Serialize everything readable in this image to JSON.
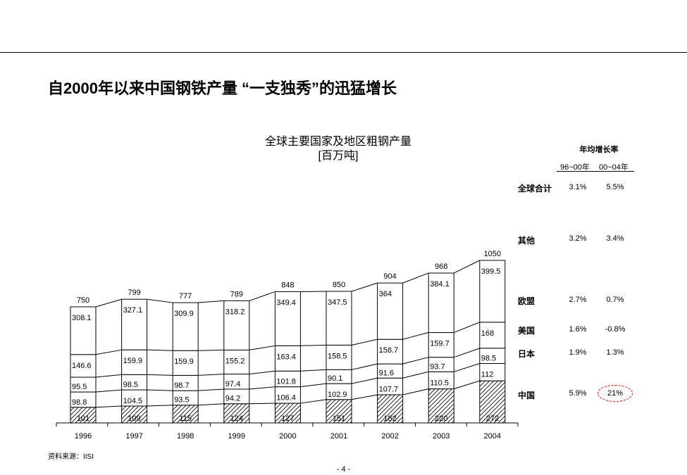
{
  "page": {
    "title": "自2000年以来中国钢铁产量 “一支独秀”的迅猛增长",
    "source": "资料来源：IISI",
    "page_number": "- 4 -"
  },
  "growth_table": {
    "header": "年均增长率",
    "col1": "96~00年",
    "col2": "00~04年",
    "rows": [
      {
        "label": "全球合计",
        "g1": "3.1%",
        "g2": "5.5%"
      },
      {
        "label": "其他",
        "g1": "3.2%",
        "g2": "3.4%"
      },
      {
        "label": "欧盟",
        "g1": "2.7%",
        "g2": "0.7%"
      },
      {
        "label": "美国",
        "g1": "1.6%",
        "g2": "-0.8%"
      },
      {
        "label": "日本",
        "g1": "1.9%",
        "g2": "1.3%"
      },
      {
        "label": "中国",
        "g1": "5.9%",
        "g2": "21%"
      }
    ],
    "highlight_color": "#ff0000"
  },
  "chart_data": {
    "type": "bar",
    "stacked": true,
    "title": "全球主要国家及地区粗钢产量",
    "unit": "[百万吨]",
    "categories": [
      "1996",
      "1997",
      "1998",
      "1999",
      "2000",
      "2001",
      "2002",
      "2003",
      "2004"
    ],
    "series": [
      {
        "name": "中国",
        "values": [
          "101",
          "109",
          "115",
          "124",
          "127",
          "151",
          "182",
          "220",
          "272"
        ],
        "pattern": "hatched"
      },
      {
        "name": "日本",
        "values": [
          "98.8",
          "104.5",
          "93.5",
          "94.2",
          "106.4",
          "102.9",
          "107.7",
          "110.5",
          "112"
        ]
      },
      {
        "name": "美国",
        "values": [
          "95.5",
          "98.5",
          "98.7",
          "97.4",
          "101.8",
          "90.1",
          "91.6",
          "93.7",
          "98.5"
        ]
      },
      {
        "name": "欧盟",
        "values": [
          "146.6",
          "159.9",
          "159.9",
          "155.2",
          "163.4",
          "158.5",
          "158.7",
          "159.7",
          "168"
        ]
      },
      {
        "name": "其他",
        "values": [
          "308.1",
          "327.1",
          "309.9",
          "318.2",
          "349.4",
          "347.5",
          "364",
          "384.1",
          "399.5"
        ]
      }
    ],
    "totals": [
      "750",
      "799",
      "777",
      "789",
      "848",
      "850",
      "904",
      "968",
      "1050"
    ],
    "legend": "right-labels",
    "grid": false
  }
}
